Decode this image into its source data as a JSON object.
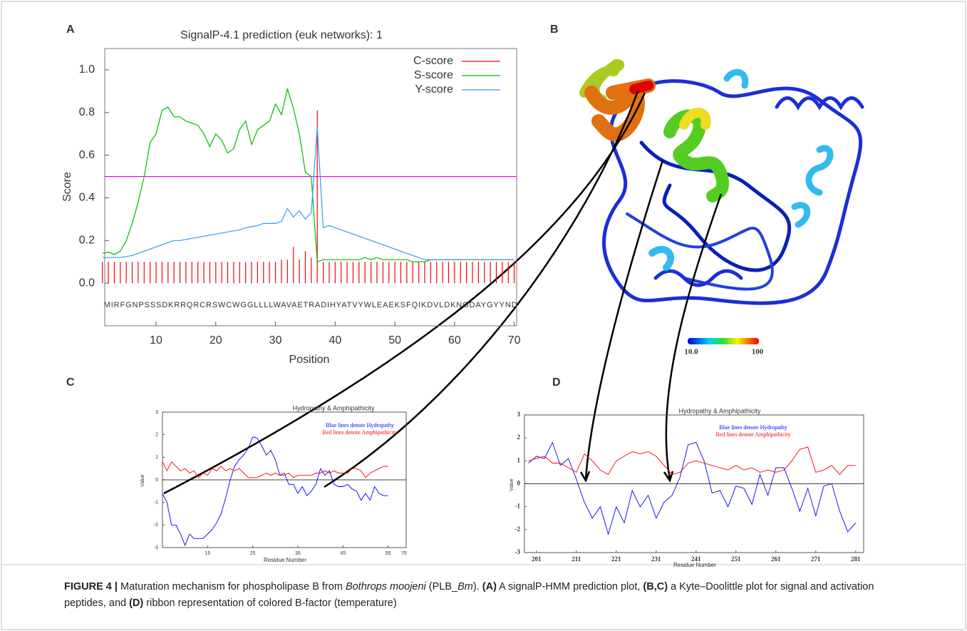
{
  "chart_data": [
    {
      "type": "line",
      "panel_label": "A",
      "title": "SignalP-4.1 prediction (euk networks): 1",
      "xlabel": "Position",
      "ylabel": "Score",
      "xlim": [
        1.4,
        70.4
      ],
      "ylim": [
        -0.2,
        1.1
      ],
      "xticks": [
        10,
        20,
        30,
        40,
        50,
        60,
        70
      ],
      "yticks": [
        {
          "value": 0,
          "label": "0.0"
        },
        0.2,
        0.4,
        0.6,
        0.8,
        {
          "value": 1,
          "label": "1.0"
        }
      ],
      "legend": "upper right",
      "threshold": 0.5,
      "threshold_color": "#e600e6",
      "sequence": "MIRFGNPSSSDKRRQRCRSWCWGGLLLLWAVAETRADIHYATVYWLEAEKSFQIKDVLDKNGDAYGYYND",
      "x": [
        1,
        2,
        3,
        4,
        5,
        6,
        7,
        8,
        9,
        10,
        11,
        12,
        13,
        14,
        15,
        16,
        17,
        18,
        19,
        20,
        21,
        22,
        23,
        24,
        25,
        26,
        27,
        28,
        29,
        30,
        31,
        32,
        33,
        34,
        35,
        36,
        37,
        38,
        39,
        40,
        41,
        42,
        43,
        44,
        45,
        46,
        47,
        48,
        49,
        50,
        51,
        52,
        53,
        54,
        55,
        56,
        57,
        58,
        59,
        60,
        61,
        62,
        63,
        64,
        65,
        66,
        67,
        68,
        69,
        70
      ],
      "series": [
        {
          "name": "C-score",
          "color": "#ff0000",
          "style": "stem",
          "values": [
            0.1,
            0.1,
            0.1,
            0.1,
            0.1,
            0.1,
            0.1,
            0.1,
            0.1,
            0.1,
            0.1,
            0.1,
            0.1,
            0.1,
            0.1,
            0.1,
            0.1,
            0.1,
            0.1,
            0.1,
            0.1,
            0.1,
            0.1,
            0.1,
            0.1,
            0.1,
            0.1,
            0.1,
            0.1,
            0.1,
            0.11,
            0.11,
            0.17,
            0.11,
            0.15,
            0.12,
            0.81,
            0.1,
            0.1,
            0.1,
            0.1,
            0.1,
            0.1,
            0.1,
            0.1,
            0.1,
            0.1,
            0.1,
            0.1,
            0.1,
            0.1,
            0.1,
            0.1,
            0.1,
            0.1,
            0.1,
            0.1,
            0.1,
            0.1,
            0.1,
            0.1,
            0.1,
            0.1,
            0.1,
            0.1,
            0.1,
            0.1,
            0.1,
            0.1,
            0.1
          ]
        },
        {
          "name": "S-score",
          "color": "#00bb00",
          "values": [
            0.14,
            0.145,
            0.135,
            0.15,
            0.2,
            0.28,
            0.38,
            0.5,
            0.66,
            0.7,
            0.81,
            0.825,
            0.78,
            0.78,
            0.76,
            0.75,
            0.74,
            0.7,
            0.64,
            0.7,
            0.67,
            0.61,
            0.63,
            0.72,
            0.76,
            0.65,
            0.72,
            0.74,
            0.76,
            0.84,
            0.79,
            0.91,
            0.82,
            0.7,
            0.52,
            0.5,
            0.1,
            0.11,
            0.11,
            0.11,
            0.11,
            0.11,
            0.11,
            0.11,
            0.12,
            0.11,
            0.12,
            0.11,
            0.11,
            0.11,
            0.11,
            0.11,
            0.1,
            0.1,
            0.1,
            0.11,
            0.11,
            0.11,
            0.11,
            0.11,
            0.11,
            0.11,
            0.11,
            0.11,
            0.11,
            0.11,
            0.11,
            0.11,
            0.11,
            0.11
          ]
        },
        {
          "name": "Y-score",
          "color": "#3399ff",
          "values": [
            0.12,
            0.12,
            0.12,
            0.12,
            0.125,
            0.13,
            0.14,
            0.15,
            0.16,
            0.17,
            0.18,
            0.19,
            0.2,
            0.2,
            0.205,
            0.21,
            0.215,
            0.22,
            0.225,
            0.23,
            0.235,
            0.24,
            0.245,
            0.25,
            0.26,
            0.265,
            0.27,
            0.28,
            0.28,
            0.28,
            0.29,
            0.35,
            0.31,
            0.34,
            0.3,
            0.33,
            0.73,
            0.26,
            0.27,
            0.26,
            0.25,
            0.24,
            0.23,
            0.22,
            0.21,
            0.2,
            0.19,
            0.18,
            0.17,
            0.16,
            0.15,
            0.14,
            0.13,
            0.12,
            0.11,
            0.11,
            0.11,
            0.11,
            0.11,
            0.11,
            0.11,
            0.11,
            0.11,
            0.11,
            0.11,
            0.11,
            0.11,
            0.11,
            0.11,
            0.11
          ]
        }
      ]
    },
    {
      "type": "line",
      "panel_label": "C",
      "title": "Hydropathy & Amphipathicity",
      "xlabel": "Residue Number",
      "ylabel": "Value",
      "xlim": [
        5,
        59
      ],
      "ylim": [
        -3,
        3
      ],
      "xticks": [
        15,
        25,
        35,
        45,
        55
      ],
      "x_end_label": "75",
      "yticks": [
        -3,
        -2,
        -1,
        0,
        1,
        2,
        3
      ],
      "zero_line": 0,
      "notes": [
        {
          "text": "Blue lines denote Hydropathy",
          "color": "#0000ff"
        },
        {
          "text": "Red lines denote Amphipathicity",
          "color": "#ff0000"
        }
      ],
      "x": [
        5,
        6,
        7,
        8,
        9,
        10,
        11,
        12,
        13,
        14,
        15,
        16,
        17,
        18,
        19,
        20,
        21,
        22,
        23,
        24,
        25,
        26,
        27,
        28,
        29,
        30,
        31,
        32,
        33,
        34,
        35,
        36,
        37,
        38,
        39,
        40,
        41,
        42,
        43,
        44,
        45,
        46,
        47,
        48,
        49,
        50,
        51,
        52,
        53,
        54,
        55
      ],
      "series": [
        {
          "color": "#0000ff",
          "values": [
            -0.6,
            -1.0,
            -2.0,
            -2.0,
            -2.4,
            -2.9,
            -2.4,
            -2.6,
            -2.6,
            -2.6,
            -2.4,
            -2.2,
            -1.9,
            -1.5,
            -0.8,
            0.0,
            0.6,
            0.9,
            1.1,
            1.4,
            1.9,
            1.85,
            1.5,
            1.1,
            1.3,
            0.9,
            0.2,
            0.3,
            -0.2,
            -0.2,
            -0.6,
            -0.3,
            -0.7,
            -0.5,
            -0.2,
            0.5,
            0.2,
            0.4,
            -0.2,
            -0.3,
            -0.3,
            -0.2,
            -0.4,
            -0.5,
            -0.9,
            -0.6,
            -0.9,
            -0.3,
            -0.6,
            -0.7,
            -0.7
          ]
        },
        {
          "color": "#ff0000",
          "values": [
            0.8,
            0.4,
            0.8,
            0.6,
            0.4,
            0.5,
            0.3,
            0.4,
            0.1,
            0.3,
            0.2,
            0.5,
            0.4,
            0.6,
            0.4,
            0.5,
            0.4,
            0.5,
            0.3,
            0.1,
            0.1,
            0.1,
            0.2,
            0.3,
            0.2,
            0.3,
            0.2,
            0.2,
            0.3,
            0.1,
            0.2,
            0.2,
            0.2,
            0.2,
            0.3,
            0.3,
            0.4,
            0.3,
            0.4,
            0.3,
            0.3,
            0.3,
            0.5,
            0.5,
            0.4,
            0.1,
            0.3,
            0.4,
            0.5,
            0.6,
            0.6
          ]
        }
      ]
    },
    {
      "type": "line",
      "panel_label": "D",
      "title": "Hydropathy & Amphipathicity",
      "xlabel": "Residue Number",
      "ylabel": "Value",
      "xlim": [
        198,
        283
      ],
      "ylim": [
        -3,
        3
      ],
      "xticks": [
        201,
        211,
        221,
        231,
        241,
        251,
        261,
        271,
        281
      ],
      "yticks": [
        -3,
        -2,
        -1,
        0,
        1,
        2,
        3
      ],
      "zero_line": 0,
      "notes": [
        {
          "text": "Blue lines denote Hydropathy",
          "color": "#0000ff"
        },
        {
          "text": "Red lines denote Amphipathicity",
          "color": "#ff0000"
        }
      ],
      "x": [
        199,
        201,
        203,
        205,
        207,
        209,
        211,
        213,
        215,
        217,
        219,
        221,
        223,
        225,
        227,
        229,
        231,
        233,
        235,
        237,
        239,
        241,
        243,
        245,
        247,
        249,
        251,
        253,
        255,
        257,
        259,
        261,
        263,
        265,
        267,
        269,
        271,
        273,
        275,
        277,
        279,
        281
      ],
      "series": [
        {
          "color": "#0000ff",
          "values": [
            0.9,
            1.2,
            1.1,
            1.8,
            0.8,
            1.1,
            0.2,
            -0.8,
            -1.5,
            -1.0,
            -2.2,
            -1.0,
            -1.7,
            -0.3,
            -1.0,
            -0.5,
            -1.5,
            -0.8,
            -0.5,
            0.3,
            1.7,
            1.8,
            1.0,
            -0.4,
            -0.3,
            -1.0,
            -0.1,
            -0.2,
            -0.9,
            0.4,
            -0.5,
            0.7,
            0.7,
            -0.2,
            -1.2,
            -0.2,
            -1.4,
            -0.1,
            0.0,
            -1.2,
            -2.1,
            -1.7
          ]
        },
        {
          "color": "#ff0000",
          "values": [
            1.0,
            1.1,
            1.2,
            0.9,
            0.9,
            0.7,
            0.5,
            1.3,
            1.0,
            0.6,
            0.4,
            1.0,
            1.2,
            1.4,
            1.3,
            1.4,
            1.2,
            0.8,
            0.4,
            0.5,
            0.9,
            1.0,
            0.9,
            0.8,
            0.7,
            0.6,
            0.8,
            0.6,
            0.7,
            0.5,
            0.6,
            0.5,
            0.6,
            1.0,
            1.5,
            1.6,
            0.5,
            0.6,
            0.8,
            0.4,
            0.8,
            0.8
          ]
        }
      ]
    }
  ],
  "panel_b": {
    "panel_label": "B",
    "colorbar_min": "10.0",
    "colorbar_max": "100"
  },
  "caption": [
    {
      "text": "FIGURE 4 |",
      "style": "bold"
    },
    {
      "text": " Maturation mechanism for phospholipase B from "
    },
    {
      "text": "Bothrops moojeni",
      "style": "italic"
    },
    {
      "text": " (PLB_"
    },
    {
      "text": "Bm",
      "style": "italic"
    },
    {
      "text": "). "
    },
    {
      "text": "(A)",
      "style": "bold"
    },
    {
      "text": " A signalP-HMM prediction plot, "
    },
    {
      "text": "(B,C)",
      "style": "bold"
    },
    {
      "text": " a Kyte–Doolittle plot for signal and activation peptides, and "
    },
    {
      "text": "(D)",
      "style": "bold"
    },
    {
      "text": " ribbon representation of colored B-factor (temperature)"
    }
  ]
}
